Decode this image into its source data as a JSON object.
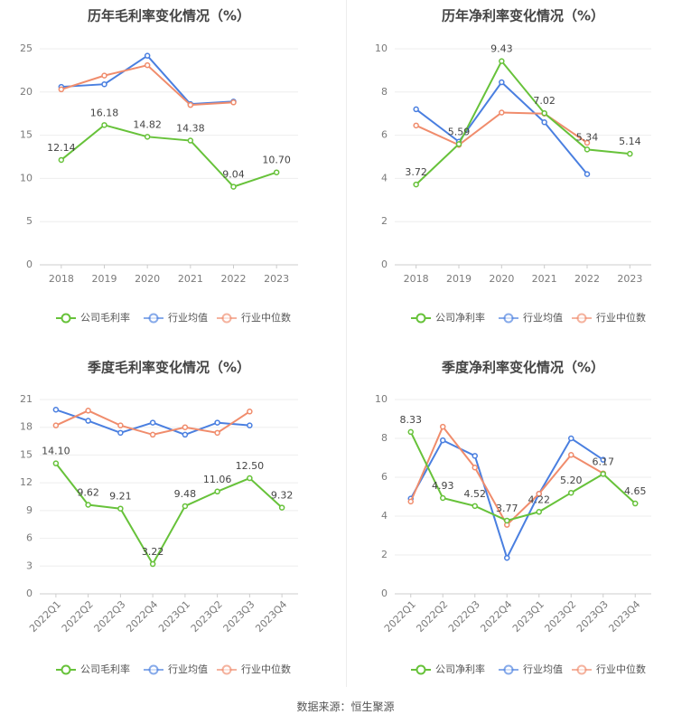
{
  "source": "数据来源：恒生聚源",
  "colors": {
    "company": "#67c23a",
    "industry_avg": "#4a7fe0",
    "industry_median": "#f08c6c",
    "grid": "#eeeeee",
    "axis": "#cccccc"
  },
  "legend_icons": [
    "circle-line-icon",
    "circle-line-icon",
    "circle-line-icon"
  ],
  "chart_data": [
    {
      "type": "line",
      "title": "历年毛利率变化情况（%）",
      "categories": [
        "2018",
        "2019",
        "2020",
        "2021",
        "2022",
        "2023"
      ],
      "ylim": [
        0,
        25
      ],
      "yticks": [
        "0",
        "5",
        "10",
        "15",
        "20",
        "25"
      ],
      "grid": true,
      "legend_position": "bottom",
      "series": [
        {
          "name": "公司毛利率",
          "values": [
            12.14,
            16.18,
            14.82,
            14.38,
            9.04,
            10.7
          ],
          "labels": [
            "12.14",
            "16.18",
            "14.82",
            "14.38",
            "9.04",
            "10.70"
          ]
        },
        {
          "name": "行业均值",
          "values": [
            20.6,
            20.9,
            24.2,
            18.6,
            18.9,
            null
          ]
        },
        {
          "name": "行业中位数",
          "values": [
            20.3,
            21.9,
            23.1,
            18.5,
            18.8,
            null
          ]
        }
      ]
    },
    {
      "type": "line",
      "title": "历年净利率变化情况（%）",
      "categories": [
        "2018",
        "2019",
        "2020",
        "2021",
        "2022",
        "2023"
      ],
      "ylim": [
        0,
        10
      ],
      "yticks": [
        "0",
        "2",
        "4",
        "6",
        "8",
        "10"
      ],
      "grid": true,
      "legend_position": "bottom",
      "series": [
        {
          "name": "公司净利率",
          "values": [
            3.72,
            5.59,
            9.43,
            7.02,
            5.34,
            5.14
          ],
          "labels": [
            "3.72",
            "5.59",
            "9.43",
            "7.02",
            "5.34",
            "5.14"
          ]
        },
        {
          "name": "行业均值",
          "values": [
            7.2,
            5.7,
            8.45,
            6.6,
            4.2,
            null
          ]
        },
        {
          "name": "行业中位数",
          "values": [
            6.45,
            5.55,
            7.05,
            7.0,
            5.65,
            null
          ]
        }
      ]
    },
    {
      "type": "line",
      "title": "季度毛利率变化情况（%）",
      "categories": [
        "2022Q1",
        "2022Q2",
        "2022Q3",
        "2022Q4",
        "2023Q1",
        "2023Q2",
        "2023Q3",
        "2023Q4"
      ],
      "ylim": [
        0,
        21
      ],
      "yticks": [
        "0",
        "3",
        "6",
        "9",
        "12",
        "15",
        "18",
        "21"
      ],
      "grid": true,
      "legend_position": "bottom",
      "series": [
        {
          "name": "公司毛利率",
          "values": [
            14.1,
            9.62,
            9.21,
            3.22,
            9.48,
            11.06,
            12.5,
            9.32
          ],
          "labels": [
            "14.10",
            "9.62",
            "9.21",
            "3.22",
            "9.48",
            "11.06",
            "12.50",
            "9.32"
          ]
        },
        {
          "name": "行业均值",
          "values": [
            19.9,
            18.7,
            17.4,
            18.5,
            17.2,
            18.5,
            18.2,
            null
          ]
        },
        {
          "name": "行业中位数",
          "values": [
            18.2,
            19.8,
            18.2,
            17.2,
            18.0,
            17.4,
            19.7,
            null
          ]
        }
      ]
    },
    {
      "type": "line",
      "title": "季度净利率变化情况（%）",
      "categories": [
        "2022Q1",
        "2022Q2",
        "2022Q3",
        "2022Q4",
        "2023Q1",
        "2023Q2",
        "2023Q3",
        "2023Q4"
      ],
      "ylim": [
        0,
        10
      ],
      "yticks": [
        "0",
        "2",
        "4",
        "6",
        "8",
        "10"
      ],
      "grid": true,
      "legend_position": "bottom",
      "series": [
        {
          "name": "公司净利率",
          "values": [
            8.33,
            4.93,
            4.52,
            3.77,
            4.22,
            5.2,
            6.17,
            4.65
          ],
          "labels": [
            "8.33",
            "4.93",
            "4.52",
            "3.77",
            "4.22",
            "5.20",
            "6.17",
            "4.65"
          ]
        },
        {
          "name": "行业均值",
          "values": [
            4.9,
            7.9,
            7.1,
            1.85,
            5.15,
            8.0,
            6.9,
            null
          ]
        },
        {
          "name": "行业中位数",
          "values": [
            4.75,
            8.6,
            6.5,
            3.55,
            5.15,
            7.15,
            6.2,
            null
          ]
        }
      ]
    }
  ]
}
